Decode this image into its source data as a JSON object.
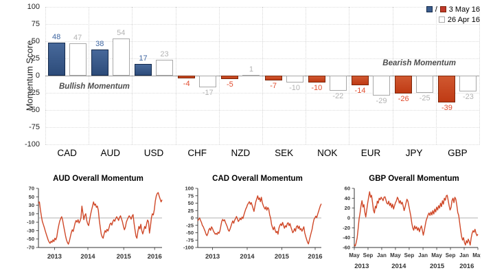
{
  "chart_data": [
    {
      "type": "bar",
      "ylabel": "Momentum Score",
      "ylim": [
        -100,
        100
      ],
      "yticks": [
        100,
        75,
        50,
        25,
        0,
        -25,
        -50,
        -75,
        -100
      ],
      "grid": "dotted",
      "legend_position": "top-right",
      "legend_separator": "/",
      "categories": [
        "CAD",
        "AUD",
        "USD",
        "CHF",
        "NZD",
        "SEK",
        "NOK",
        "EUR",
        "JPY",
        "GBP"
      ],
      "series": [
        {
          "name": "3 May 16",
          "style": "filled",
          "values": [
            48,
            38,
            17,
            -4,
            -5,
            -7,
            -10,
            -14,
            -26,
            -39
          ]
        },
        {
          "name": "26 Apr 16",
          "style": "outline",
          "values": [
            47,
            54,
            23,
            -17,
            1,
            -10,
            -22,
            -29,
            -25,
            -23
          ]
        }
      ],
      "annotations": [
        {
          "text": "Bullish Momentum",
          "side": "left"
        },
        {
          "text": "Bearish Momentum",
          "side": "right"
        }
      ]
    },
    {
      "type": "line",
      "title": "AUD Overall Momentum",
      "ylim": [
        -70,
        70
      ],
      "yticks": [
        70,
        50,
        30,
        10,
        -10,
        -30,
        -50,
        -70
      ],
      "xlabels": [
        {
          "text": "2013",
          "pos": 0.13
        },
        {
          "text": "2014",
          "pos": 0.4
        },
        {
          "text": "2015",
          "pos": 0.69
        },
        {
          "text": "2016",
          "pos": 0.94
        }
      ],
      "values": [
        35,
        38,
        20,
        5,
        -8,
        -15,
        -22,
        -30,
        -38,
        -45,
        -52,
        -57,
        -60,
        -55,
        -58,
        -52,
        -56,
        -48,
        -52,
        -45,
        -30,
        -18,
        -8,
        -2,
        3,
        -5,
        -18,
        -30,
        -42,
        -52,
        -58,
        -62,
        -55,
        -45,
        -35,
        -28,
        -32,
        -22,
        -12,
        -6,
        -10,
        -4,
        -12,
        -8,
        0,
        28,
        12,
        -4,
        6,
        10,
        -6,
        -14,
        -18,
        -5,
        8,
        18,
        28,
        38,
        30,
        33,
        25,
        28,
        18,
        -5,
        -22,
        -38,
        -45,
        -48,
        -38,
        -30,
        -34,
        -27,
        -31,
        -24,
        -15,
        -12,
        -17,
        -9,
        -4,
        -8,
        -2,
        3,
        -1,
        -6,
        1,
        5,
        -2,
        -9,
        -20,
        -28,
        -22,
        -10,
        -4,
        1,
        5,
        2,
        -3,
        4,
        8,
        -12,
        -28,
        -43,
        -48,
        -32,
        -20,
        -26,
        -15,
        -30,
        -38,
        -30,
        -20,
        -25,
        -14,
        -5,
        -9,
        -36,
        -20,
        0,
        10,
        7,
        20,
        40,
        52,
        58,
        60,
        52,
        45,
        38,
        43
      ]
    },
    {
      "type": "line",
      "title": "CAD Overall Momentum",
      "ylim": [
        -100,
        100
      ],
      "yticks": [
        100,
        75,
        50,
        25,
        0,
        -25,
        -50,
        -75,
        -100
      ],
      "xlabels": [
        {
          "text": "2013",
          "pos": 0.12
        },
        {
          "text": "2014",
          "pos": 0.4
        },
        {
          "text": "2015",
          "pos": 0.68
        },
        {
          "text": "2016",
          "pos": 0.95
        }
      ],
      "values": [
        -10,
        -5,
        0,
        -8,
        -15,
        -25,
        -30,
        -38,
        -45,
        -55,
        -60,
        -52,
        -40,
        -35,
        -42,
        -30,
        -36,
        -44,
        -50,
        -55,
        -52,
        -56,
        -48,
        -52,
        -45,
        -28,
        -12,
        -5,
        -10,
        -6,
        -15,
        -22,
        -30,
        -40,
        -45,
        -38,
        -28,
        -18,
        -10,
        -18,
        -8,
        -2,
        5,
        -3,
        -12,
        -8,
        -1,
        -6,
        3,
        -2,
        10,
        20,
        30,
        36,
        45,
        50,
        55,
        46,
        52,
        42,
        32,
        22,
        40,
        55,
        65,
        75,
        62,
        68,
        55,
        70,
        52,
        42,
        35,
        30,
        38,
        26,
        35,
        30,
        10,
        0,
        -22,
        -32,
        -40,
        -30,
        -42,
        -50,
        -45,
        -55,
        -35,
        -25,
        -20,
        -26,
        -15,
        -25,
        -35,
        -26,
        -31,
        -20,
        -16,
        -26,
        -19,
        -31,
        -40,
        -50,
        -45,
        -36,
        -45,
        -30,
        -26,
        -36,
        -28,
        -40,
        -36,
        -45,
        -38,
        -30,
        -50,
        -62,
        -72,
        -82,
        -88,
        -75,
        -62,
        -50,
        -38,
        -20,
        -5,
        0,
        6,
        1,
        12,
        22,
        32,
        42,
        48
      ]
    },
    {
      "type": "line",
      "title": "GBP Overall Momentum",
      "ylim": [
        -60,
        60
      ],
      "yticks": [
        60,
        40,
        20,
        0,
        -20,
        -40,
        -60
      ],
      "xlabels": [
        {
          "text": "May",
          "pos": 0.0
        },
        {
          "text": "Sep",
          "pos": 0.111
        },
        {
          "text": "Jan",
          "pos": 0.222
        },
        {
          "text": "May",
          "pos": 0.333
        },
        {
          "text": "Sep",
          "pos": 0.444
        },
        {
          "text": "Jan",
          "pos": 0.556
        },
        {
          "text": "May",
          "pos": 0.667
        },
        {
          "text": "Sep",
          "pos": 0.778
        },
        {
          "text": "Jan",
          "pos": 0.889
        },
        {
          "text": "May",
          "pos": 1.0
        }
      ],
      "year_labels": [
        {
          "text": "2013",
          "pos": 0.06
        },
        {
          "text": "2014",
          "pos": 0.36
        },
        {
          "text": "2015",
          "pos": 0.67
        },
        {
          "text": "2016",
          "pos": 0.91
        }
      ],
      "values": [
        -54,
        -57,
        -50,
        -40,
        -22,
        -2,
        10,
        25,
        35,
        22,
        27,
        12,
        2,
        16,
        30,
        42,
        53,
        42,
        46,
        32,
        16,
        10,
        24,
        20,
        34,
        30,
        40,
        37,
        42,
        39,
        35,
        42,
        43,
        37,
        30,
        28,
        34,
        25,
        30,
        21,
        28,
        18,
        25,
        31,
        35,
        42,
        38,
        30,
        35,
        28,
        32,
        24,
        15,
        22,
        30,
        38,
        34,
        24,
        14,
        4,
        -10,
        -20,
        -25,
        -16,
        -22,
        -18,
        -25,
        -20,
        -28,
        -21,
        -16,
        -25,
        -35,
        -26,
        -15,
        -5,
        0,
        6,
        10,
        5,
        12,
        6,
        15,
        8,
        18,
        12,
        22,
        16,
        25,
        20,
        30,
        23,
        35,
        28,
        40,
        36,
        45,
        46,
        36,
        25,
        16,
        21,
        35,
        40,
        31,
        42,
        38,
        26,
        11,
        5,
        -10,
        -25,
        -38,
        -45,
        -40,
        -50,
        -55,
        -46,
        -51,
        -43,
        -48,
        -55,
        -41,
        -31,
        -26,
        -29,
        -23,
        -31,
        -36,
        -33
      ]
    }
  ],
  "colors": {
    "bar_positive_top": "#47689a",
    "bar_positive_bottom": "#2d4c7a",
    "bar_positive_border": "#13294b",
    "bar_negative_top": "#d05830",
    "bar_negative_bottom": "#bf3a14",
    "bar_negative_border": "#7c2508",
    "bar_outline_fill": "#ffffff",
    "bar_outline_border": "#a8a8a8",
    "label_positive": "#3c64a0",
    "label_negative": "#e14b2d",
    "label_outline": "#b2b2b2",
    "line_series": "#cf4727",
    "zero_line": "#999999",
    "legend_blue": "#3b5c8c",
    "legend_red": "#c0392b",
    "axis": "#333333"
  }
}
